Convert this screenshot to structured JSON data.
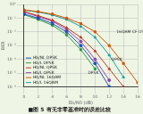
{
  "chart_data": {
    "type": "line",
    "title": "■图 5 有无非零基准时的误差比较",
    "x_label": "Eb/N0 (dB)",
    "y_label": "BER",
    "x": [
      0,
      2,
      4,
      6,
      8,
      10,
      12,
      14,
      16
    ],
    "xlim": [
      0,
      16
    ],
    "xticks": [
      0,
      2,
      4,
      6,
      8,
      10,
      12,
      14,
      16
    ],
    "ylim": [
      1e-06,
      1
    ],
    "yticks": [
      {
        "value": 1e-06,
        "label": "10⁻⁶"
      },
      {
        "value": 1e-05,
        "label": "10⁻⁵"
      },
      {
        "value": 0.0001,
        "label": "10⁻⁴"
      },
      {
        "value": 0.001,
        "label": "10⁻³"
      },
      {
        "value": 0.01,
        "label": "10⁻²"
      },
      {
        "value": 0.1,
        "label": "10⁻¹"
      },
      {
        "value": 1,
        "label": "10⁰"
      }
    ],
    "log": "y",
    "grid": true,
    "legend": "lower left",
    "series": [
      {
        "name": "Hb/NL DPSK",
        "color": "#1f4fbf",
        "marker": "circle",
        "line_style": "solid",
        "values": [
          0.2,
          0.1,
          0.04,
          0.01,
          0.001,
          5e-05,
          1e-06,
          null,
          null
        ]
      },
      {
        "name": "Hb/L DPSK",
        "color": "#2a9d3a",
        "marker": "rect",
        "line_style": "solid",
        "values": [
          0.18,
          0.08,
          0.03,
          0.006,
          0.0005,
          2e-05,
          null,
          null,
          null
        ]
      },
      {
        "name": "Hb/NL QPSK",
        "color": "#c0392b",
        "marker": "triangle",
        "line_style": "solid",
        "values": [
          0.3,
          0.15,
          0.07,
          0.02,
          0.004,
          0.0004,
          2e-05,
          1e-06,
          null
        ]
      },
      {
        "name": "Hb/L QPSK",
        "color": "#8e44ad",
        "marker": "circle",
        "line_style": "solid",
        "values": [
          0.28,
          0.13,
          0.06,
          0.015,
          0.002,
          0.0001,
          3e-06,
          null,
          null
        ]
      },
      {
        "name": "Hb/NL 16QAM",
        "color": "#d35400",
        "marker": "rect",
        "line_style": "solid",
        "values": [
          0.4,
          0.3,
          0.2,
          0.1,
          0.04,
          0.01,
          0.001,
          5e-05,
          2e-06
        ]
      },
      {
        "name": "Hb/L 16QAM",
        "color": "#16a0a0",
        "marker": "triangle",
        "line_style": "solid",
        "values": [
          0.38,
          0.28,
          0.17,
          0.08,
          0.025,
          0.004,
          0.0002,
          5e-06,
          null
        ]
      }
    ],
    "annotations": [
      {
        "text": "DPSK",
        "x": 9,
        "y": 1e-05
      },
      {
        "text": "QPSK",
        "x": 12.3,
        "y": 0.0001
      },
      {
        "text": "16QAM CF US",
        "x": 13,
        "y": 0.01
      }
    ]
  }
}
